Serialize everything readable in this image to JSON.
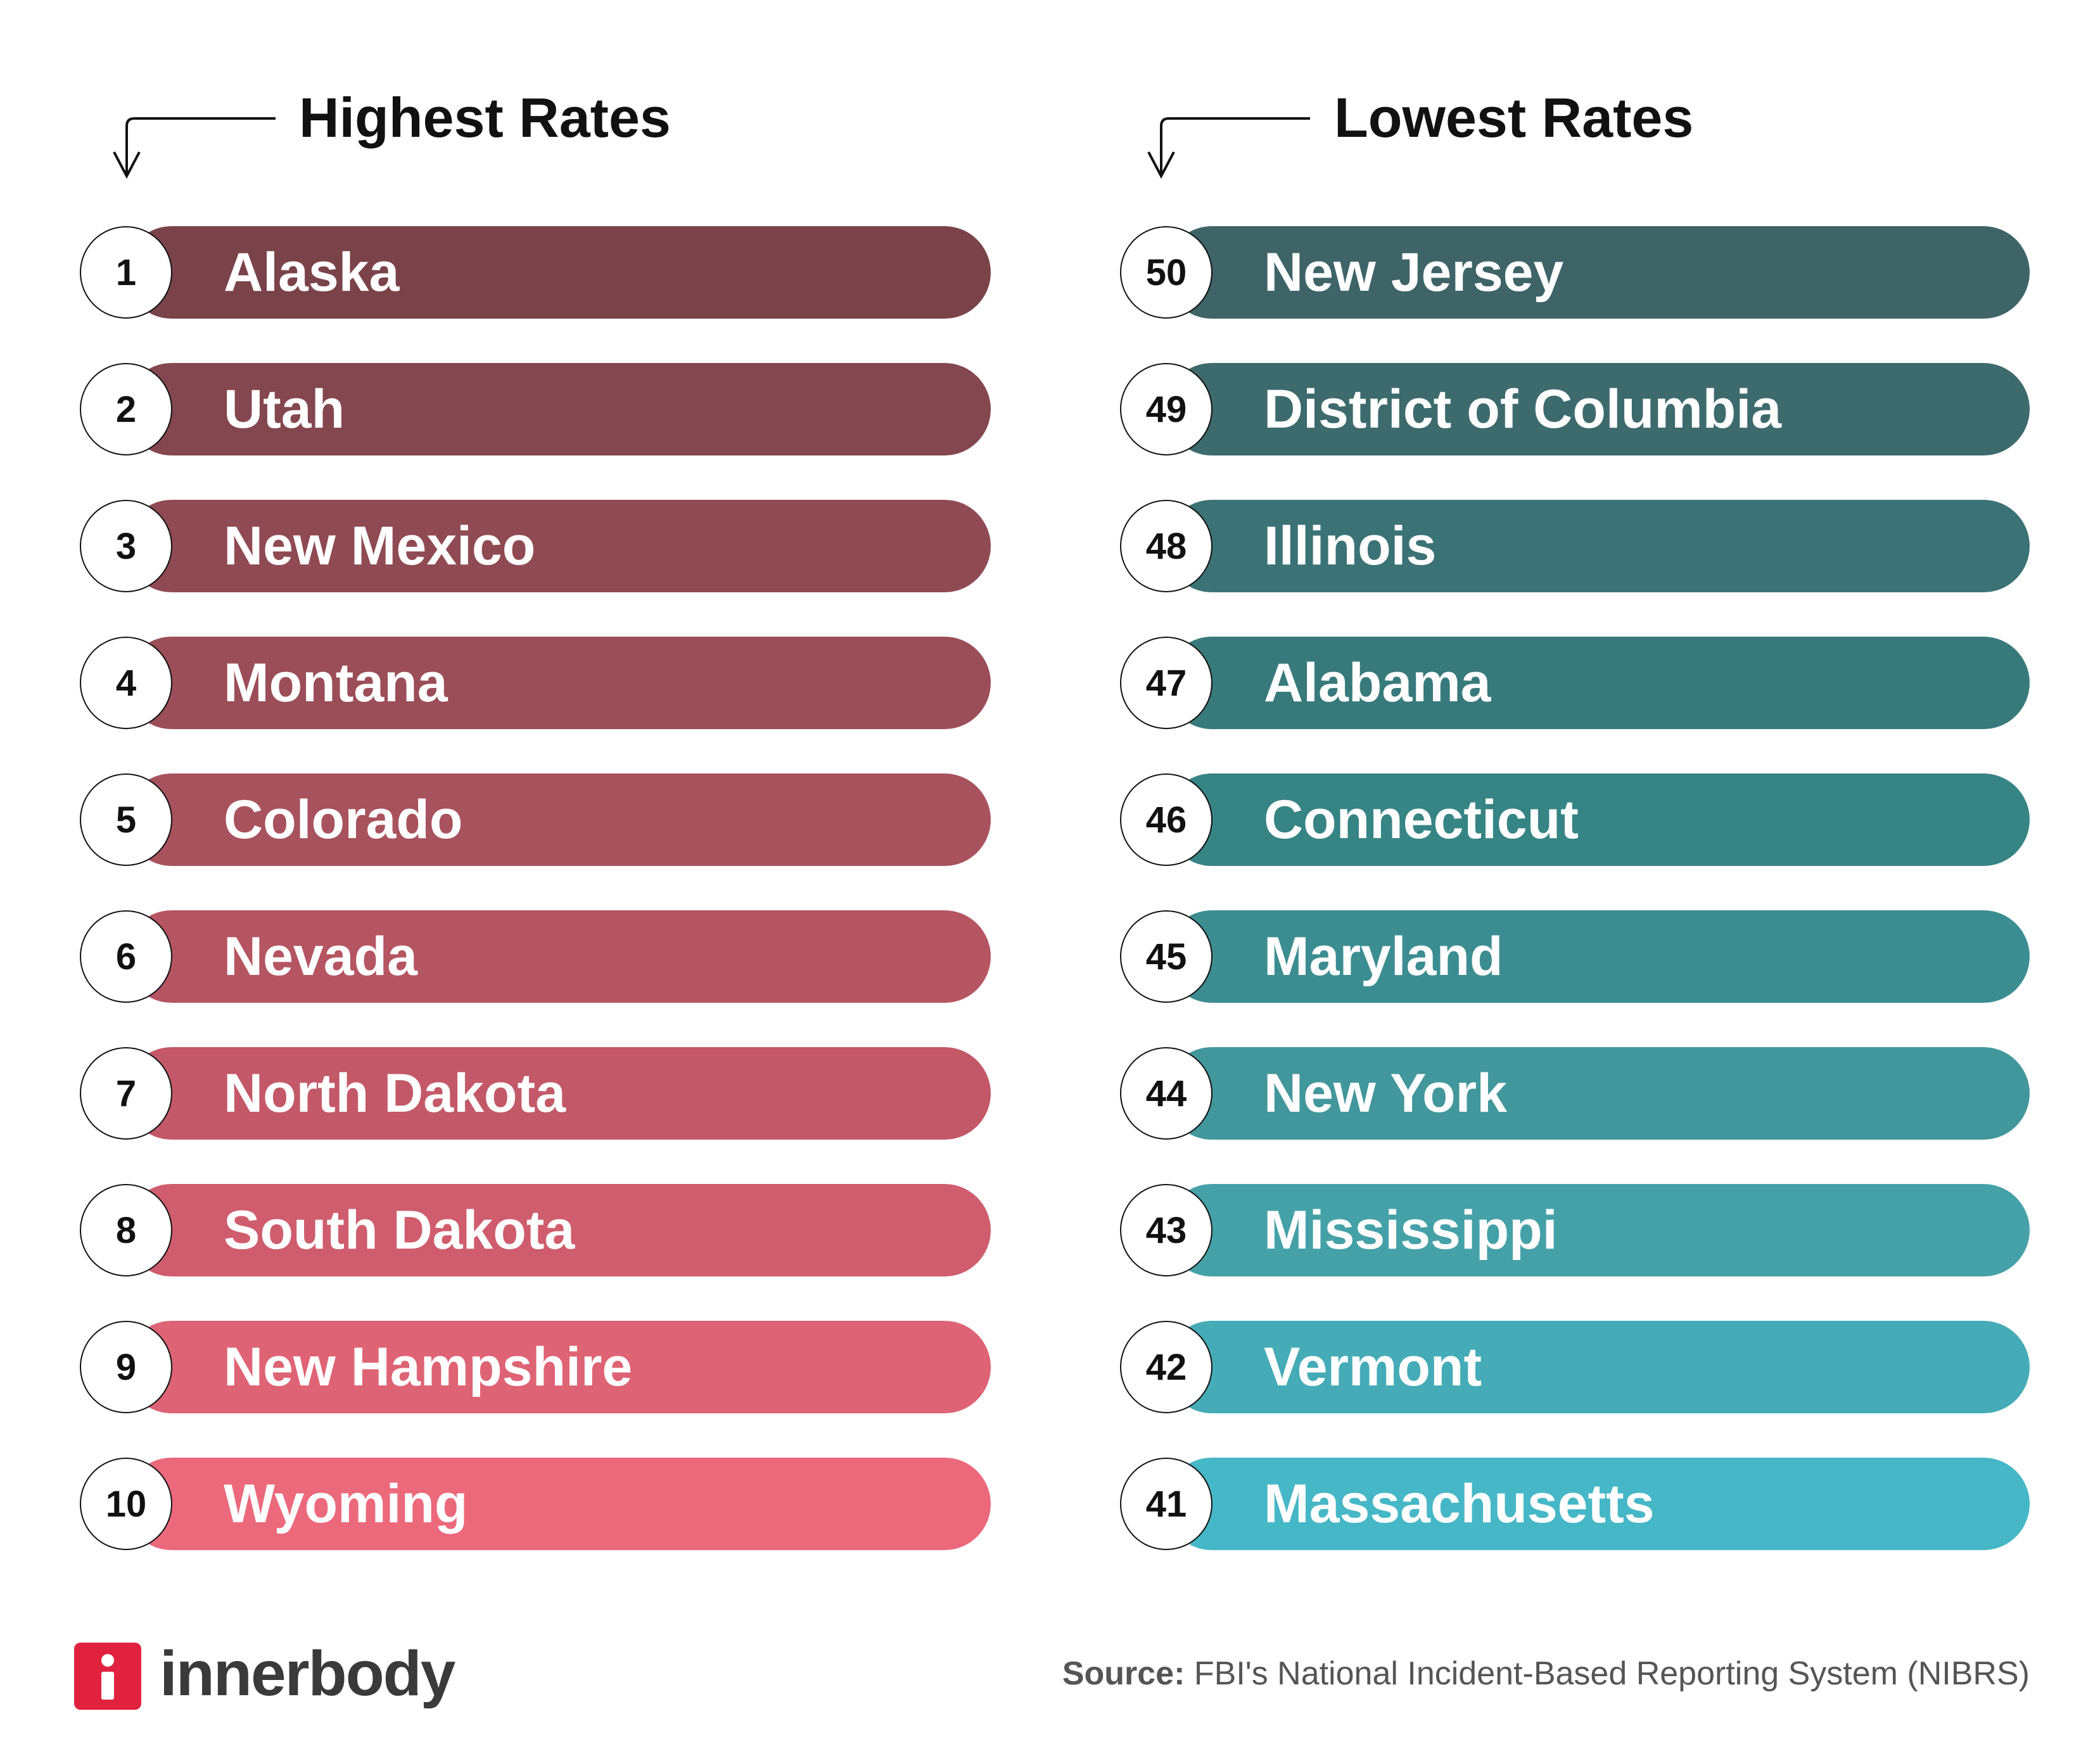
{
  "highest": {
    "title": "Highest Rates",
    "items": [
      {
        "rank": "1",
        "state": "Alaska",
        "color": "#7a434a"
      },
      {
        "rank": "2",
        "state": "Utah",
        "color": "#84474f"
      },
      {
        "rank": "3",
        "state": "New Mexico",
        "color": "#8f4a53"
      },
      {
        "rank": "4",
        "state": "Montana",
        "color": "#9b4e58"
      },
      {
        "rank": "5",
        "state": "Colorado",
        "color": "#a8525d"
      },
      {
        "rank": "6",
        "state": "Nevada",
        "color": "#b55562"
      },
      {
        "rank": "7",
        "state": "North Dakota",
        "color": "#c35968"
      },
      {
        "rank": "8",
        "state": "South Dakota",
        "color": "#cf5d6d"
      },
      {
        "rank": "9",
        "state": "New Hampshire",
        "color": "#de6374"
      },
      {
        "rank": "10",
        "state": "Wyoming",
        "color": "#ec697c"
      }
    ]
  },
  "lowest": {
    "title": "Lowest Rates",
    "items": [
      {
        "rank": "50",
        "state": "New Jersey",
        "color": "#3e6468"
      },
      {
        "rank": "49",
        "state": "District of Columbia",
        "color": "#3d6a6d"
      },
      {
        "rank": "48",
        "state": "Illinois",
        "color": "#3b7275"
      },
      {
        "rank": "47",
        "state": "Alabama",
        "color": "#387a7c"
      },
      {
        "rank": "46",
        "state": "Connecticut",
        "color": "#378485"
      },
      {
        "rank": "45",
        "state": "Maryland",
        "color": "#3c8d91"
      },
      {
        "rank": "44",
        "state": "New York",
        "color": "#42979c"
      },
      {
        "rank": "43",
        "state": "Mississippi",
        "color": "#45a1a8"
      },
      {
        "rank": "42",
        "state": "Vermont",
        "color": "#45acb7"
      },
      {
        "rank": "41",
        "state": "Massachusetts",
        "color": "#46b7c6"
      }
    ]
  },
  "footer": {
    "brand": "innerbody",
    "brand_color": "#e0223f",
    "source_label": "Source:",
    "source_text": " FBI's National Incident-Based Reporting System (NIBRS)"
  }
}
